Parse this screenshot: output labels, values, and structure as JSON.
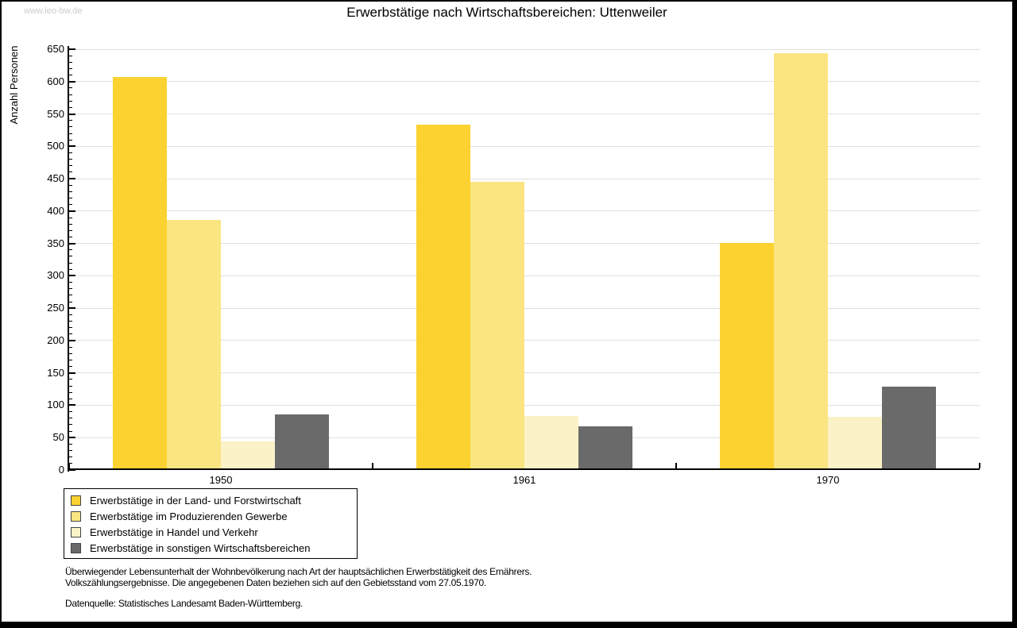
{
  "page": {
    "watermark": "www.leo-bw.de",
    "title": "Erwerbstätige nach Wirtschaftsbereichen: Uttenweiler"
  },
  "chart_data": {
    "type": "bar",
    "title": "Erwerbstätige nach Wirtschaftsbereichen: Uttenweiler",
    "ylabel": "Anzahl Personen",
    "xlabel": "",
    "categories": [
      "1950",
      "1961",
      "1970"
    ],
    "series": [
      {
        "name": "Erwerbstätige in der Land- und Forstwirtschaft",
        "color": "#FCD230",
        "values": [
          607,
          533,
          351
        ]
      },
      {
        "name": "Erwerbstätige im Produzierenden Gewerbe",
        "color": "#FBE582",
        "values": [
          386,
          445,
          644
        ]
      },
      {
        "name": "Erwerbstätige in Handel und Verkehr",
        "color": "#FBF2C7",
        "values": [
          44,
          84,
          82
        ]
      },
      {
        "name": "Erwerbstätige in sonstigen Wirtschaftsbereichen",
        "color": "#6A6A6A",
        "values": [
          86,
          67,
          129
        ]
      }
    ],
    "ylim": [
      0,
      650
    ],
    "ytick_step": 50,
    "minor_tick_step": 10,
    "grid": true,
    "legend_position": "bottom-left",
    "colors": {
      "gridline": "#e0e0e0",
      "axis": "#000000",
      "watermark": "#cccccc"
    }
  },
  "footer": {
    "line1": "Überwiegender Lebensunterhalt der Wohnbevölkerung nach Art der hauptsächlichen Erwerbstätigkeit des Ernährers.",
    "line2": "Volkszählungsergebnisse. Die angegebenen Daten beziehen sich auf den Gebietsstand vom 27.05.1970.",
    "source": "Datenquelle: Statistisches Landesamt Baden-Württemberg."
  }
}
